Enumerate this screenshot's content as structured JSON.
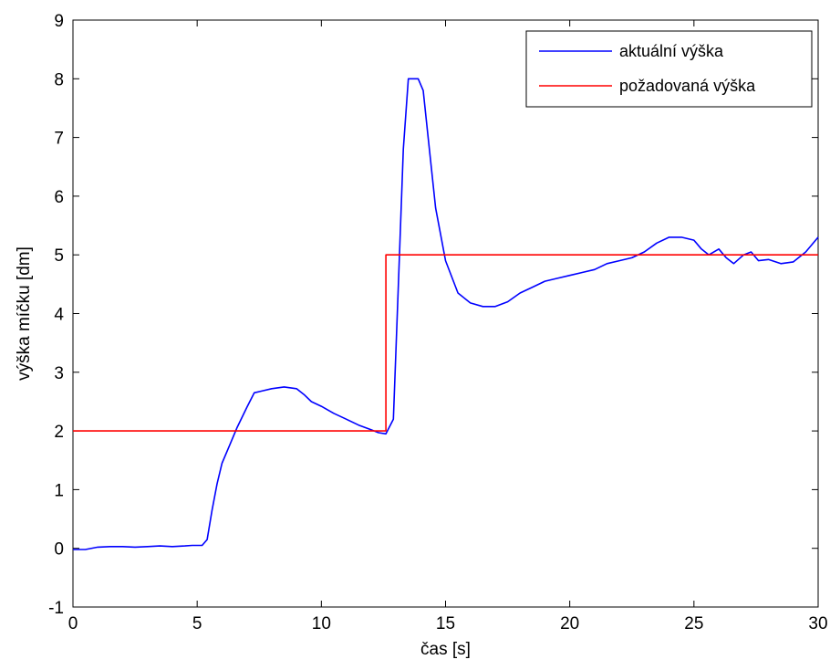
{
  "chart_data": {
    "type": "line",
    "xlabel": "čas [s]",
    "ylabel": "výška míčku [dm]",
    "xlim": [
      0,
      30
    ],
    "ylim": [
      -1,
      9
    ],
    "xticks": [
      0,
      5,
      10,
      15,
      20,
      25,
      30
    ],
    "yticks": [
      -1,
      0,
      1,
      2,
      3,
      4,
      5,
      6,
      7,
      8,
      9
    ],
    "grid": false,
    "legend_position": "top-right",
    "series": [
      {
        "name": "aktuální výška",
        "color": "#0000ff",
        "x": [
          0,
          0.5,
          1,
          1.5,
          2,
          2.5,
          3,
          3.5,
          4,
          4.5,
          4.8,
          5,
          5.2,
          5.4,
          5.6,
          5.8,
          6,
          6.3,
          6.6,
          7,
          7.3,
          7.6,
          8,
          8.5,
          9,
          9.3,
          9.6,
          10,
          10.5,
          11,
          11.5,
          12,
          12.3,
          12.6,
          12.9,
          13.1,
          13.3,
          13.5,
          13.7,
          13.9,
          14.1,
          14.3,
          14.6,
          15,
          15.5,
          16,
          16.5,
          17,
          17.5,
          18,
          18.5,
          19,
          19.5,
          20,
          20.5,
          21,
          21.5,
          22,
          22.5,
          23,
          23.5,
          24,
          24.5,
          25,
          25.3,
          25.6,
          26,
          26.3,
          26.6,
          27,
          27.3,
          27.6,
          28,
          28.5,
          29,
          29.5,
          30
        ],
        "y": [
          -0.02,
          -0.02,
          0.02,
          0.03,
          0.03,
          0.02,
          0.03,
          0.04,
          0.03,
          0.04,
          0.05,
          0.05,
          0.05,
          0.15,
          0.65,
          1.1,
          1.45,
          1.75,
          2.05,
          2.4,
          2.65,
          2.68,
          2.72,
          2.75,
          2.72,
          2.62,
          2.5,
          2.42,
          2.3,
          2.2,
          2.1,
          2.02,
          1.97,
          1.95,
          2.2,
          4.5,
          6.8,
          8.0,
          8.0,
          8.0,
          7.8,
          7.0,
          5.8,
          4.9,
          4.35,
          4.18,
          4.12,
          4.12,
          4.2,
          4.35,
          4.45,
          4.55,
          4.6,
          4.65,
          4.7,
          4.75,
          4.85,
          4.9,
          4.95,
          5.05,
          5.2,
          5.3,
          5.3,
          5.25,
          5.1,
          5.0,
          5.1,
          4.95,
          4.85,
          5.0,
          5.05,
          4.9,
          4.92,
          4.85,
          4.88,
          5.05,
          5.3
        ]
      },
      {
        "name": "požadovaná výška",
        "color": "#ff0000",
        "x": [
          0,
          12.6,
          12.6,
          30
        ],
        "y": [
          2,
          2,
          5,
          5
        ]
      }
    ]
  }
}
